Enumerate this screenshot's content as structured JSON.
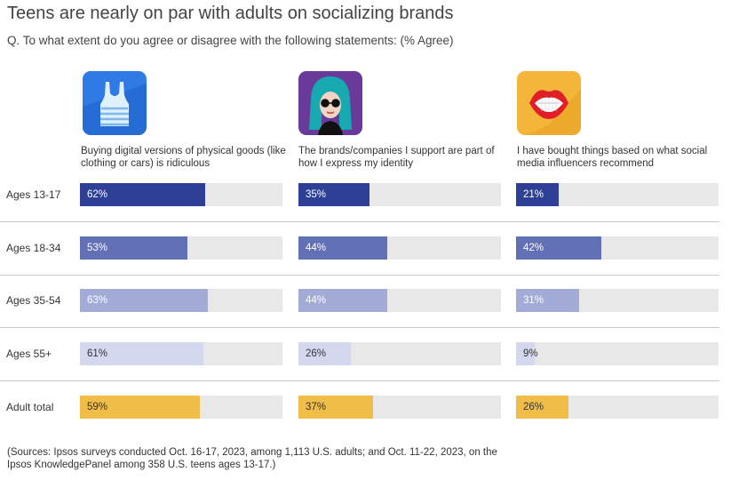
{
  "header": {
    "title": "Teens are nearly on par with adults on socializing brands",
    "subtitle": "Q. To what extent do you agree or disagree with the following statements: (% Agree)"
  },
  "icons": [
    {
      "name": "tank-top-icon",
      "background": "#2f7ae5"
    },
    {
      "name": "woman-sunglasses-icon",
      "background": "#6a3a9a"
    },
    {
      "name": "lips-icon",
      "background": "#f4b63a"
    }
  ],
  "footer": {
    "source": "(Sources: Ipsos surveys conducted Oct. 16-17, 2023, among 1,113 U.S. adults; and Oct. 11-22, 2023, on the Ipsos KnowledgePanel among 358 U.S. teens ages 13-17.)"
  },
  "chart_data": {
    "type": "bar",
    "orientation": "horizontal",
    "title": "Teens are nearly on par with adults on socializing brands",
    "unit": "%",
    "xlim": [
      0,
      100
    ],
    "categories": [
      "Ages 13-17",
      "Ages 18-34",
      "Ages 35-54",
      "Ages 55+",
      "Adult total"
    ],
    "statements": [
      "Buying digital versions of physical goods (like clothing or cars) is ridiculous",
      "The brands/companies I support are part of how I express my identity",
      "I have bought things based on what social media influencers recommend"
    ],
    "series": [
      {
        "name": "Buying digital versions of physical goods (like clothing or cars) is ridiculous",
        "values": [
          62,
          53,
          63,
          61,
          59
        ]
      },
      {
        "name": "The brands/companies I support are part of how I express my identity",
        "values": [
          35,
          44,
          44,
          26,
          37
        ]
      },
      {
        "name": "I have bought things based on what social media influencers recommend",
        "values": [
          21,
          42,
          31,
          9,
          26
        ]
      }
    ],
    "colors": [
      "#2e3f96",
      "#6271b5",
      "#a2acd6",
      "#d3d8ee",
      "#f0be48"
    ],
    "value_text_colors": [
      "#ffffff",
      "#ffffff",
      "#ffffff",
      "#333333",
      "#333333"
    ],
    "track_color": "#e8e8e8"
  }
}
